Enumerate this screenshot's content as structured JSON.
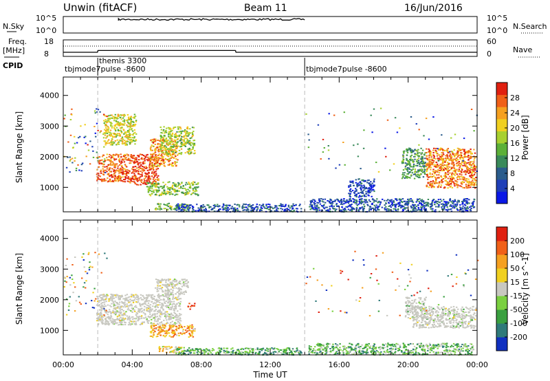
{
  "header": {
    "station": "Unwin (fitACF)",
    "beam": "Beam 11",
    "date": "16/Jun/2016"
  },
  "strips": {
    "nsky_label": "N.Sky",
    "nsky_ticks": [
      "10^5",
      "10^0"
    ],
    "nsearch_label": "N.Search",
    "freq_label_1": "Freq.",
    "freq_label_2": "[MHz]",
    "freq_ticks": [
      "18",
      "8"
    ],
    "nave_label": "Nave",
    "nave_ticks": [
      "60",
      "0"
    ],
    "cpid_label": "CPID",
    "cpid_segments": [
      {
        "name": "tbjmode7pulse -8600",
        "start_h": 0,
        "end_h": 2
      },
      {
        "name": "themis 3300",
        "start_h": 2,
        "end_h": 14
      },
      {
        "name": "tbjmode7pulse -8600",
        "start_h": 14,
        "end_h": 24
      }
    ],
    "freq_steps": [
      {
        "start_h": 0,
        "end_h": 2,
        "mhz": 10.5
      },
      {
        "start_h": 2,
        "end_h": 10,
        "mhz": 11.6
      },
      {
        "start_h": 10,
        "end_h": 14,
        "mhz": 10.5
      },
      {
        "start_h": 14,
        "end_h": 24,
        "mhz": 10.5
      }
    ]
  },
  "chart_data": [
    {
      "type": "heatmap",
      "ylabel": "Slant Range [km]",
      "xlabel": "Time UT",
      "ylim": [
        200,
        4600
      ],
      "xlim": [
        0,
        24
      ],
      "yticks": [
        "4000",
        "3000",
        "2000",
        "1000"
      ],
      "xticks": [
        "00:00",
        "04:00",
        "08:00",
        "12:00",
        "16:00",
        "20:00",
        "00:00"
      ],
      "colorbar": {
        "label": "Power [dB]",
        "ticks": [
          "28",
          "24",
          "20",
          "16",
          "12",
          "8",
          "4"
        ],
        "colors": [
          "#0a18e6",
          "#1f3fb8",
          "#2b5c8c",
          "#3a8a5a",
          "#5cb038",
          "#a8d030",
          "#f0d020",
          "#f5a020",
          "#f06018",
          "#e02010"
        ]
      },
      "echo_regions": [
        {
          "t0": 1.9,
          "t1": 3.8,
          "r0": 1200,
          "r1": 2100,
          "level": 0.85
        },
        {
          "t0": 3.8,
          "t1": 5.5,
          "r0": 1100,
          "r1": 2100,
          "level": 0.9
        },
        {
          "t0": 5.0,
          "t1": 6.6,
          "r0": 1700,
          "r1": 2600,
          "level": 0.75
        },
        {
          "t0": 5.6,
          "t1": 7.6,
          "r0": 2100,
          "r1": 3000,
          "level": 0.55
        },
        {
          "t0": 2.3,
          "t1": 4.2,
          "r0": 2400,
          "r1": 3400,
          "level": 0.6
        },
        {
          "t0": 4.8,
          "t1": 7.8,
          "r0": 750,
          "r1": 1200,
          "level": 0.5
        },
        {
          "t0": 5.3,
          "t1": 7.2,
          "r0": 280,
          "r1": 500,
          "level": 0.45
        },
        {
          "t0": 6.5,
          "t1": 13.8,
          "r0": 220,
          "r1": 480,
          "level": 0.2
        },
        {
          "t0": 14.2,
          "t1": 23.8,
          "r0": 220,
          "r1": 650,
          "level": 0.2
        },
        {
          "t0": 19.6,
          "t1": 21.0,
          "r0": 1300,
          "r1": 2300,
          "level": 0.4
        },
        {
          "t0": 21.0,
          "t1": 23.9,
          "r0": 1000,
          "r1": 2300,
          "level": 0.8
        },
        {
          "t0": 16.5,
          "t1": 18.0,
          "r0": 700,
          "r1": 1300,
          "level": 0.15
        }
      ]
    },
    {
      "type": "heatmap",
      "ylabel": "Slant Range [km]",
      "xlabel": "Time UT",
      "ylim": [
        200,
        4600
      ],
      "xlim": [
        0,
        24
      ],
      "yticks": [
        "4000",
        "3000",
        "2000",
        "1000"
      ],
      "xticks": [
        "00:00",
        "04:00",
        "08:00",
        "12:00",
        "16:00",
        "20:00",
        "00:00"
      ],
      "colorbar": {
        "label": "Velocity [m s^-1]",
        "ticks": [
          "200",
          "100",
          "50",
          "15",
          "-15",
          "-50",
          "-100",
          "-200"
        ],
        "colors": [
          "#1030c0",
          "#2f7a7a",
          "#3aa040",
          "#7ad040",
          "#c8c8c0",
          "#f0d020",
          "#f5a020",
          "#f06018",
          "#e02010"
        ]
      },
      "echo_regions": [
        {
          "t0": 1.9,
          "t1": 6.8,
          "r0": 1200,
          "r1": 2200,
          "level": 0.5
        },
        {
          "t0": 5.3,
          "t1": 7.2,
          "r0": 2200,
          "r1": 2700,
          "level": 0.5
        },
        {
          "t0": 5.0,
          "t1": 7.6,
          "r0": 800,
          "r1": 1200,
          "level": 0.7
        },
        {
          "t0": 5.5,
          "t1": 7.0,
          "r0": 300,
          "r1": 500,
          "level": 0.6
        },
        {
          "t0": 7.2,
          "t1": 7.6,
          "r0": 1700,
          "r1": 1900,
          "level": 0.95
        },
        {
          "t0": 6.5,
          "t1": 13.8,
          "r0": 220,
          "r1": 450,
          "level": 0.3
        },
        {
          "t0": 14.2,
          "t1": 23.8,
          "r0": 220,
          "r1": 600,
          "level": 0.35
        },
        {
          "t0": 20.2,
          "t1": 23.9,
          "r0": 1100,
          "r1": 1800,
          "level": 0.45
        },
        {
          "t0": 19.8,
          "t1": 21.0,
          "r0": 1400,
          "r1": 2100,
          "level": 0.42
        }
      ]
    }
  ]
}
